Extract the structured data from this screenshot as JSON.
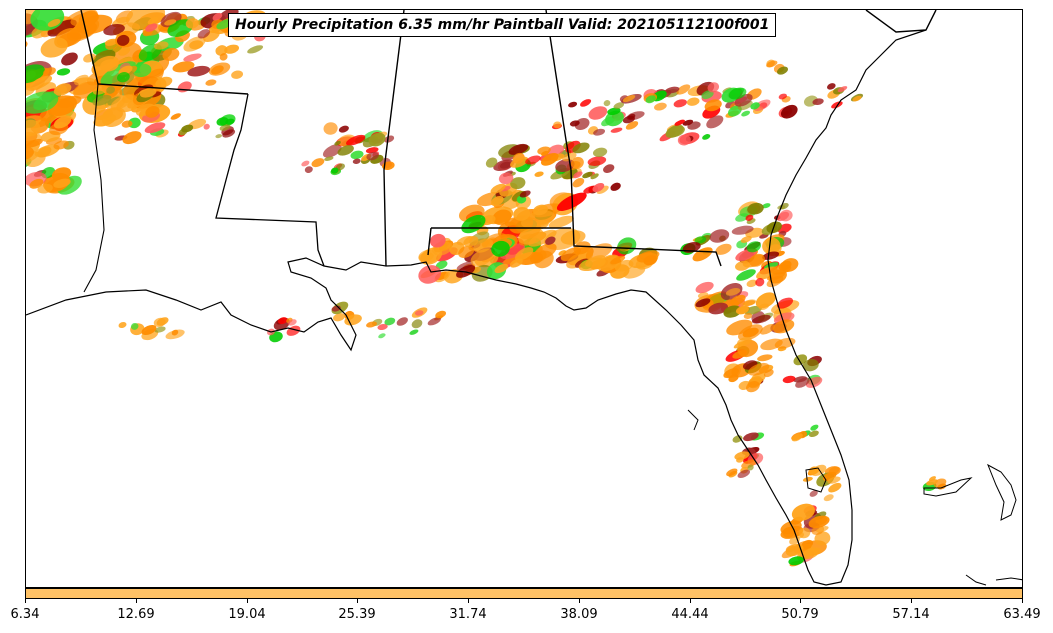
{
  "title": "Hourly Precipitation 6.35 mm/hr Paintball Valid: 202105112100f001",
  "colorbar": {
    "color": "#ffc266",
    "tick_labels": [
      "6.34",
      "12.69",
      "19.04",
      "25.39",
      "31.74",
      "38.09",
      "44.44",
      "50.79",
      "57.14",
      "63.49"
    ]
  },
  "map": {
    "region": "Southeastern United States and Florida",
    "paintball_colors": [
      "#ff8c00",
      "#ffa31a",
      "#ff0000",
      "#ff5c5c",
      "#8b0000",
      "#a52a2a",
      "#00cc00",
      "#33dd33",
      "#808000",
      "#9a9a20"
    ],
    "outline_color": "#000000"
  }
}
